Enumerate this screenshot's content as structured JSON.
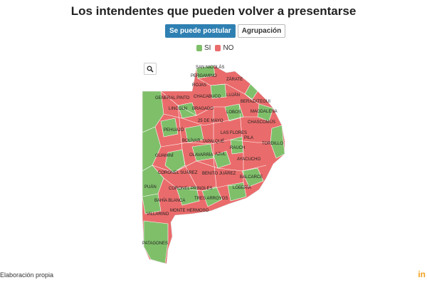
{
  "title": "Los intendentes que pueden volver a presentarse",
  "toggle": {
    "active_label": "Se puede postular",
    "other_label": "Agrupación"
  },
  "legend": [
    {
      "label": "SI",
      "color": "#7fbf6a"
    },
    {
      "label": "NO",
      "color": "#ea6b6b"
    }
  ],
  "colors": {
    "si": "#7fbf6a",
    "no": "#ea6b6b",
    "border": "#ffffff"
  },
  "zoom_icon": "search-icon",
  "map_labels": [
    "SAN NICOLÁS",
    "PERGAMINO",
    "ZÁRATE",
    "ROJAS",
    "LUJÁN",
    "GENERAL PINTO",
    "CHACABUCO",
    "BERAZATEGUI",
    "LINCOLN",
    "BRAGADO",
    "LOBOS",
    "MAGDALENA",
    "25 DE MAYO",
    "CHASCOMÚS",
    "PEHUAJÓ",
    "LAS FLORES",
    "PILA",
    "BOLÍVAR",
    "TAPALQUÉ",
    "RAUCH",
    "TORDILLO",
    "GUAMINÍ",
    "OLAVARRÍA",
    "AZUL",
    "AYACUCHO",
    "CORONEL SUÁREZ",
    "BENITO JUÁREZ",
    "BALCARCE",
    "PUÁN",
    "CORONEL PRINGLES",
    "LOBERÍA",
    "BAHÍA BLANCA",
    "TRES ARROYOS",
    "MONTE HERMOSO",
    "VILLARINO",
    "PATAGONES"
  ],
  "source": "Elaboración propia",
  "brand": "in"
}
